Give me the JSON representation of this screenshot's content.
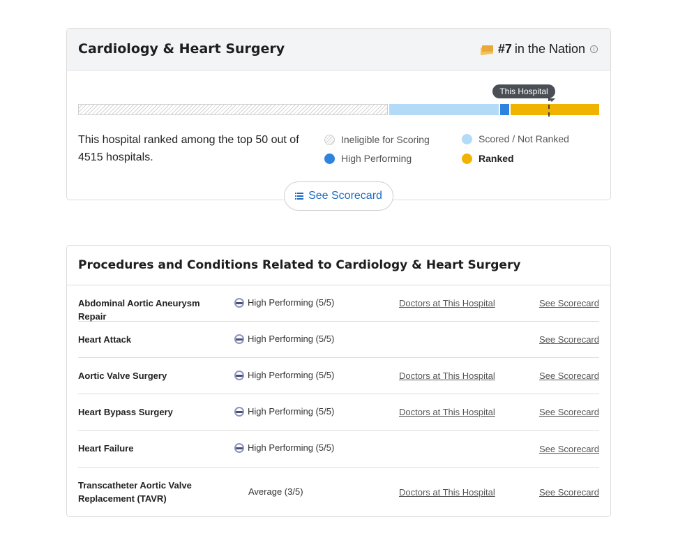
{
  "specialty": {
    "title": "Cardiology & Heart Surgery",
    "rank_number": "#7",
    "rank_text": "in the Nation",
    "info_symbol": "i",
    "tooltip": "This Hospital",
    "description": "This hospital ranked among the top 50 out of 4515 hospitals.",
    "legend": {
      "ineligible": "Ineligible for Scoring",
      "scored": "Scored / Not Ranked",
      "high": "High Performing",
      "ranked": "Ranked"
    },
    "see_scorecard": "See Scorecard",
    "colors": {
      "scored": "#b3dbf8",
      "high": "#2e84dc",
      "ranked": "#f0b400",
      "link": "#1a6bc7"
    }
  },
  "procedures": {
    "title": "Procedures and Conditions Related to Cardiology & Heart Surgery",
    "rows": [
      {
        "name": "Abdominal Aortic Aneurysm Repair",
        "rating": "High Performing (5/5)",
        "doctors_link": "Doctors at This Hospital",
        "scorecard_link": "See Scorecard"
      },
      {
        "name": "Heart Attack",
        "rating": "High Performing (5/5)",
        "doctors_link": "",
        "scorecard_link": "See Scorecard"
      },
      {
        "name": "Aortic Valve Surgery",
        "rating": "High Performing (5/5)",
        "doctors_link": "Doctors at This Hospital",
        "scorecard_link": "See Scorecard"
      },
      {
        "name": "Heart Bypass Surgery",
        "rating": "High Performing (5/5)",
        "doctors_link": "Doctors at This Hospital",
        "scorecard_link": "See Scorecard"
      },
      {
        "name": "Heart Failure",
        "rating": "High Performing (5/5)",
        "doctors_link": "",
        "scorecard_link": "See Scorecard"
      },
      {
        "name": "Transcatheter Aortic Valve Replacement (TAVR)",
        "rating": "Average (3/5)",
        "doctors_link": "Doctors at This Hospital",
        "scorecard_link": "See Scorecard"
      }
    ]
  }
}
